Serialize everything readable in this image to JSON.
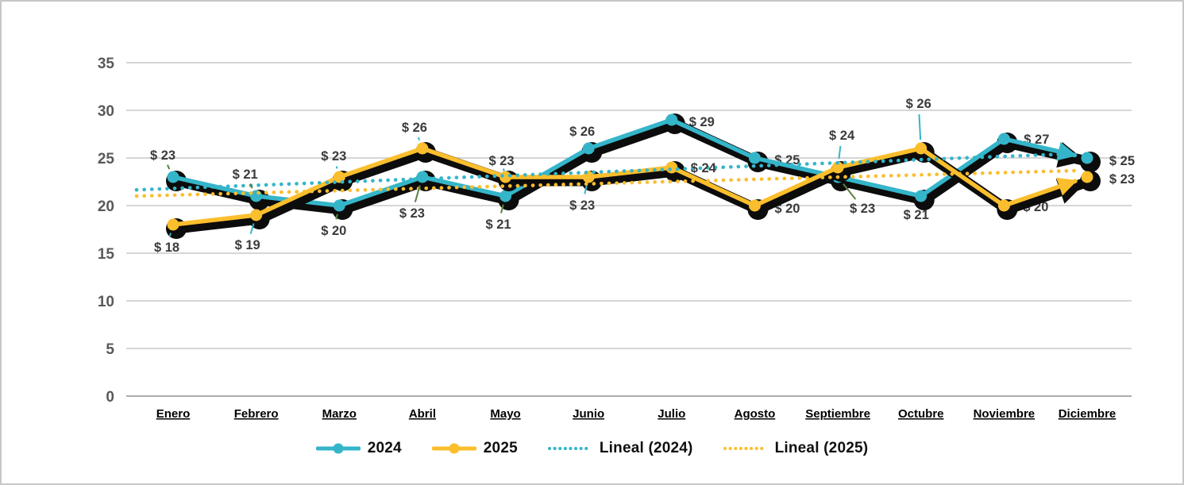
{
  "chart_data": {
    "type": "line",
    "title": "",
    "categories": [
      "Enero",
      "Febrero",
      "Marzo",
      "Abril",
      "Mayo",
      "Junio",
      "Julio",
      "Agosto",
      "Septiembre",
      "Octubre",
      "Noviembre",
      "Diciembre"
    ],
    "series": [
      {
        "name": "2024",
        "values": [
          23,
          21,
          20,
          23,
          21,
          26,
          29,
          25,
          23,
          21,
          27,
          25
        ],
        "data_labels": [
          {
            "text": "$ 23",
            "dx": -13,
            "dy": -28,
            "leader": true,
            "under": false
          },
          {
            "text": "$ 21",
            "dx": -14,
            "dy": -28,
            "leader": true,
            "under": false
          },
          {
            "text": "$ 20",
            "dx": -7,
            "dy": 31,
            "leader": true,
            "under": false
          },
          {
            "text": "$ 23",
            "dx": -13,
            "dy": 45,
            "leader": true,
            "under": false
          },
          {
            "text": "$ 21",
            "dx": -9,
            "dy": 35,
            "leader": true,
            "under": false
          },
          {
            "text": "$ 26",
            "dx": -8,
            "dy": -22,
            "leader": false,
            "under": false
          },
          {
            "text": "$ 29",
            "dx": 38,
            "dy": 2,
            "leader": false,
            "under": true
          },
          {
            "text": "$ 25",
            "dx": 41,
            "dy": 2,
            "leader": false,
            "under": true
          },
          {
            "text": "$ 23",
            "dx": 31,
            "dy": 39,
            "leader": true,
            "under": false
          },
          {
            "text": "$ 21",
            "dx": -6,
            "dy": 23,
            "leader": false,
            "under": false
          },
          {
            "text": "$ 27",
            "dx": 41,
            "dy": 0,
            "leader": false,
            "under": true
          },
          {
            "text": "$ 25",
            "dx": 44,
            "dy": 3,
            "leader": false,
            "under": false
          }
        ]
      },
      {
        "name": "2025",
        "values": [
          18,
          19,
          23,
          26,
          23,
          23,
          24,
          20,
          24,
          26,
          20,
          23
        ],
        "data_labels": [
          {
            "text": "$ 18",
            "dx": -8,
            "dy": 28,
            "leader": true,
            "under": false
          },
          {
            "text": "$ 19",
            "dx": -11,
            "dy": 37,
            "leader": true,
            "under": false
          },
          {
            "text": "$ 23",
            "dx": -7,
            "dy": -27,
            "leader": true,
            "under": false
          },
          {
            "text": "$ 26",
            "dx": -10,
            "dy": -27,
            "leader": true,
            "under": false
          },
          {
            "text": "$ 23",
            "dx": -5,
            "dy": -21,
            "leader": true,
            "under": false
          },
          {
            "text": "$ 23",
            "dx": -8,
            "dy": 35,
            "leader": true,
            "under": false
          },
          {
            "text": "$ 24",
            "dx": 40,
            "dy": 0,
            "leader": false,
            "under": false
          },
          {
            "text": "$ 20",
            "dx": 41,
            "dy": 3,
            "leader": false,
            "under": true
          },
          {
            "text": "$ 24",
            "dx": 5,
            "dy": -41,
            "leader": true,
            "under": false
          },
          {
            "text": "$ 26",
            "dx": -3,
            "dy": -57,
            "leader": true,
            "under": false
          },
          {
            "text": "$ 20",
            "dx": 40,
            "dy": 1,
            "leader": false,
            "under": true
          },
          {
            "text": "$ 23",
            "dx": 44,
            "dy": 2,
            "leader": false,
            "under": false
          }
        ]
      }
    ],
    "trendlines": [
      {
        "name": "Lineal (2024)",
        "series": "2024",
        "start_value": 21.8,
        "end_value": 25.5
      },
      {
        "name": "Lineal (2025)",
        "series": "2025",
        "start_value": 21.1,
        "end_value": 23.7
      }
    ],
    "y_ticks": [
      0,
      5,
      10,
      15,
      20,
      25,
      30,
      35
    ],
    "ylim": [
      0,
      35
    ],
    "grid": true,
    "legend_position": "bottom",
    "legend": [
      "2024",
      "2025",
      "Lineal (2024)",
      "Lineal (2025)"
    ],
    "label_format": "$ {value}"
  },
  "colors": {
    "series_2024": "#35b5c9",
    "series_2025": "#fbbe2c",
    "shadow": "#0c0c0c",
    "leader_2024": "#5b8140",
    "leader_2025": "#35b5c9",
    "gridline": "#c9c9c9",
    "zero_line": "#acacac",
    "axis_text": "#595959",
    "label_text": "#3b3b3b",
    "month_text": "#000000"
  }
}
